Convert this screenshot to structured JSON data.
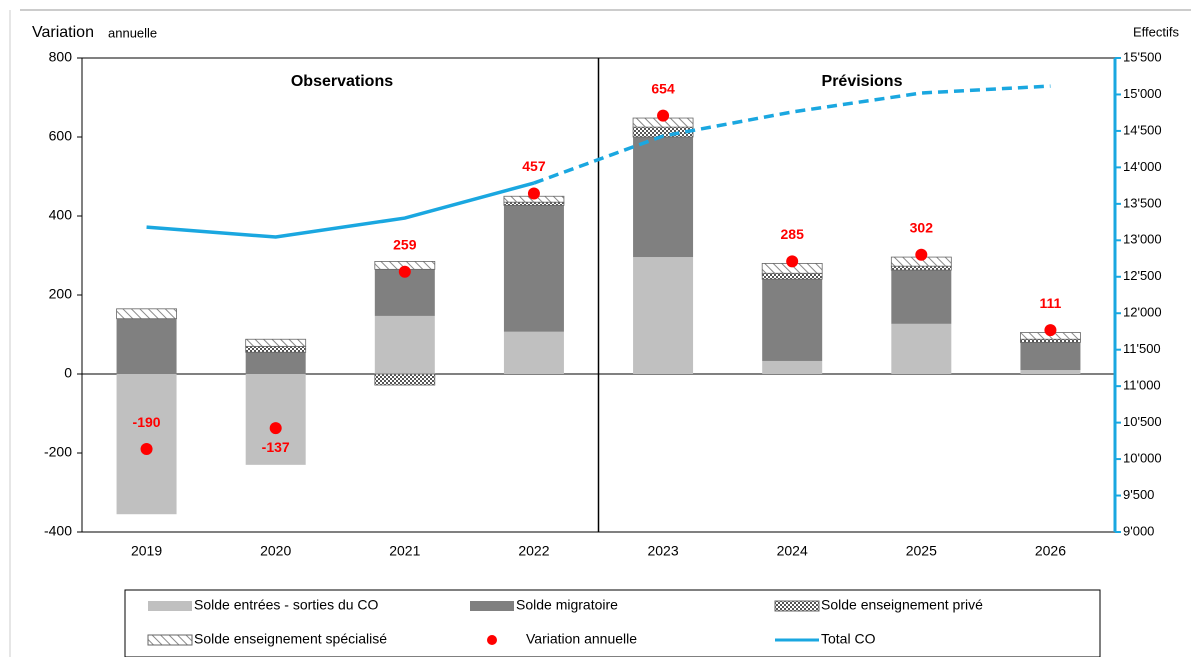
{
  "chart_data": {
    "type": "bar",
    "ylabel": [
      "Variation",
      "annuelle"
    ],
    "y2label": "Effectifs",
    "annotations": [
      "Observations",
      "Prévisions"
    ],
    "categories": [
      "2019",
      "2020",
      "2021",
      "2022",
      "2023",
      "2024",
      "2025",
      "2026"
    ],
    "projection_start": "2022",
    "series": [
      {
        "name": "Solde entrées - sorties du CO",
        "type": "bar",
        "color": "#c0c0c0",
        "values": [
          -355,
          -230,
          147,
          107,
          296,
          33,
          127,
          10
        ]
      },
      {
        "name": "Solde migratoire",
        "type": "bar",
        "color": "#808080",
        "values": [
          140,
          55,
          118,
          320,
          304,
          207,
          136,
          70
        ]
      },
      {
        "name": "Solde enseignement privé",
        "type": "bar",
        "color": "#555555",
        "pattern": "crosshatch",
        "values": [
          0,
          15,
          -28,
          8,
          25,
          15,
          10,
          8
        ]
      },
      {
        "name": "Solde enseignement spécialisé",
        "type": "bar",
        "color": "#808080",
        "pattern": "diagonal",
        "values": [
          25,
          18,
          20,
          15,
          23,
          25,
          23,
          17
        ]
      },
      {
        "name": "Variation annuelle",
        "type": "scatter",
        "color": "#ff0000",
        "values": [
          -190,
          -137,
          259,
          457,
          654,
          285,
          302,
          111
        ]
      },
      {
        "name": "Total CO",
        "type": "line",
        "axis": "y2",
        "color": "#1aa7e0",
        "values": [
          13180,
          13045,
          13305,
          13785,
          14430,
          14760,
          15020,
          15115
        ]
      }
    ],
    "ylim": [
      -400,
      800
    ],
    "yticks": [
      -400,
      -200,
      0,
      200,
      400,
      600,
      800
    ],
    "y2lim": [
      9000,
      15500
    ],
    "y2ticks": [
      {
        "value": 9000,
        "label": "9'000"
      },
      {
        "value": 9500,
        "label": "9'500"
      },
      {
        "value": 10000,
        "label": "10'000"
      },
      {
        "value": 10500,
        "label": "10'500"
      },
      {
        "value": 11000,
        "label": "11'000"
      },
      {
        "value": 11500,
        "label": "11'500"
      },
      {
        "value": 12000,
        "label": "12'000"
      },
      {
        "value": 12500,
        "label": "12'500"
      },
      {
        "value": 13000,
        "label": "13'000"
      },
      {
        "value": 13500,
        "label": "13'500"
      },
      {
        "value": 14000,
        "label": "14'000"
      },
      {
        "value": 14500,
        "label": "14'500"
      },
      {
        "value": 15000,
        "label": "15'000"
      },
      {
        "value": 15500,
        "label": "15'500"
      }
    ]
  }
}
